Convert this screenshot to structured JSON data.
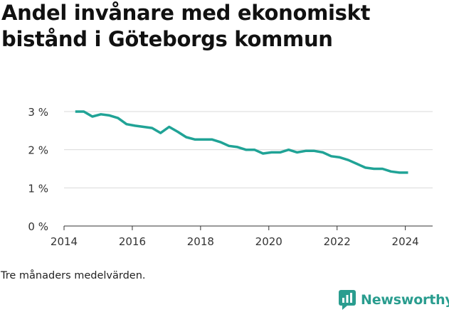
{
  "title": "Andel invånare med ekonomiskt bistånd i Göteborgs kommun",
  "note": "Tre månaders medelvärden.",
  "brand": {
    "name": "Newsworthy",
    "icon": "bar-chart-chat-icon"
  },
  "colors": {
    "line": "#20a396",
    "brand": "#2a9d8f",
    "grid": "#d9d9d9",
    "axis": "#333333"
  },
  "chart_data": {
    "type": "line",
    "title": "Andel invånare med ekonomiskt bistånd i Göteborgs kommun",
    "xlabel": "",
    "ylabel": "",
    "xlim": [
      2014,
      2024.8
    ],
    "ylim": [
      0,
      3
    ],
    "x_ticks": [
      2014,
      2016,
      2018,
      2020,
      2022,
      2024
    ],
    "y_ticks": [
      0,
      1,
      2,
      3
    ],
    "y_tick_labels": [
      "0 %",
      "1 %",
      "2 %",
      "3 %"
    ],
    "grid": true,
    "series": [
      {
        "x": [
          2014.33,
          2014.58,
          2014.83,
          2015.08,
          2015.33,
          2015.58,
          2015.83,
          2016.08,
          2016.33,
          2016.58,
          2016.83,
          2017.08,
          2017.33,
          2017.58,
          2017.83,
          2018.08,
          2018.33,
          2018.58,
          2018.83,
          2019.08,
          2019.33,
          2019.58,
          2019.83,
          2020.08,
          2020.33,
          2020.58,
          2020.83,
          2021.08,
          2021.33,
          2021.58,
          2021.83,
          2022.08,
          2022.33,
          2022.58,
          2022.83,
          2023.08,
          2023.33,
          2023.58,
          2023.83,
          2024.08
        ],
        "values": [
          3.0,
          3.0,
          2.87,
          2.93,
          2.9,
          2.83,
          2.67,
          2.63,
          2.6,
          2.57,
          2.44,
          2.6,
          2.47,
          2.33,
          2.27,
          2.27,
          2.27,
          2.2,
          2.1,
          2.07,
          2.0,
          2.0,
          1.9,
          1.93,
          1.93,
          2.0,
          1.93,
          1.97,
          1.97,
          1.93,
          1.83,
          1.8,
          1.73,
          1.63,
          1.53,
          1.5,
          1.5,
          1.43,
          1.4,
          1.4
        ]
      }
    ]
  }
}
